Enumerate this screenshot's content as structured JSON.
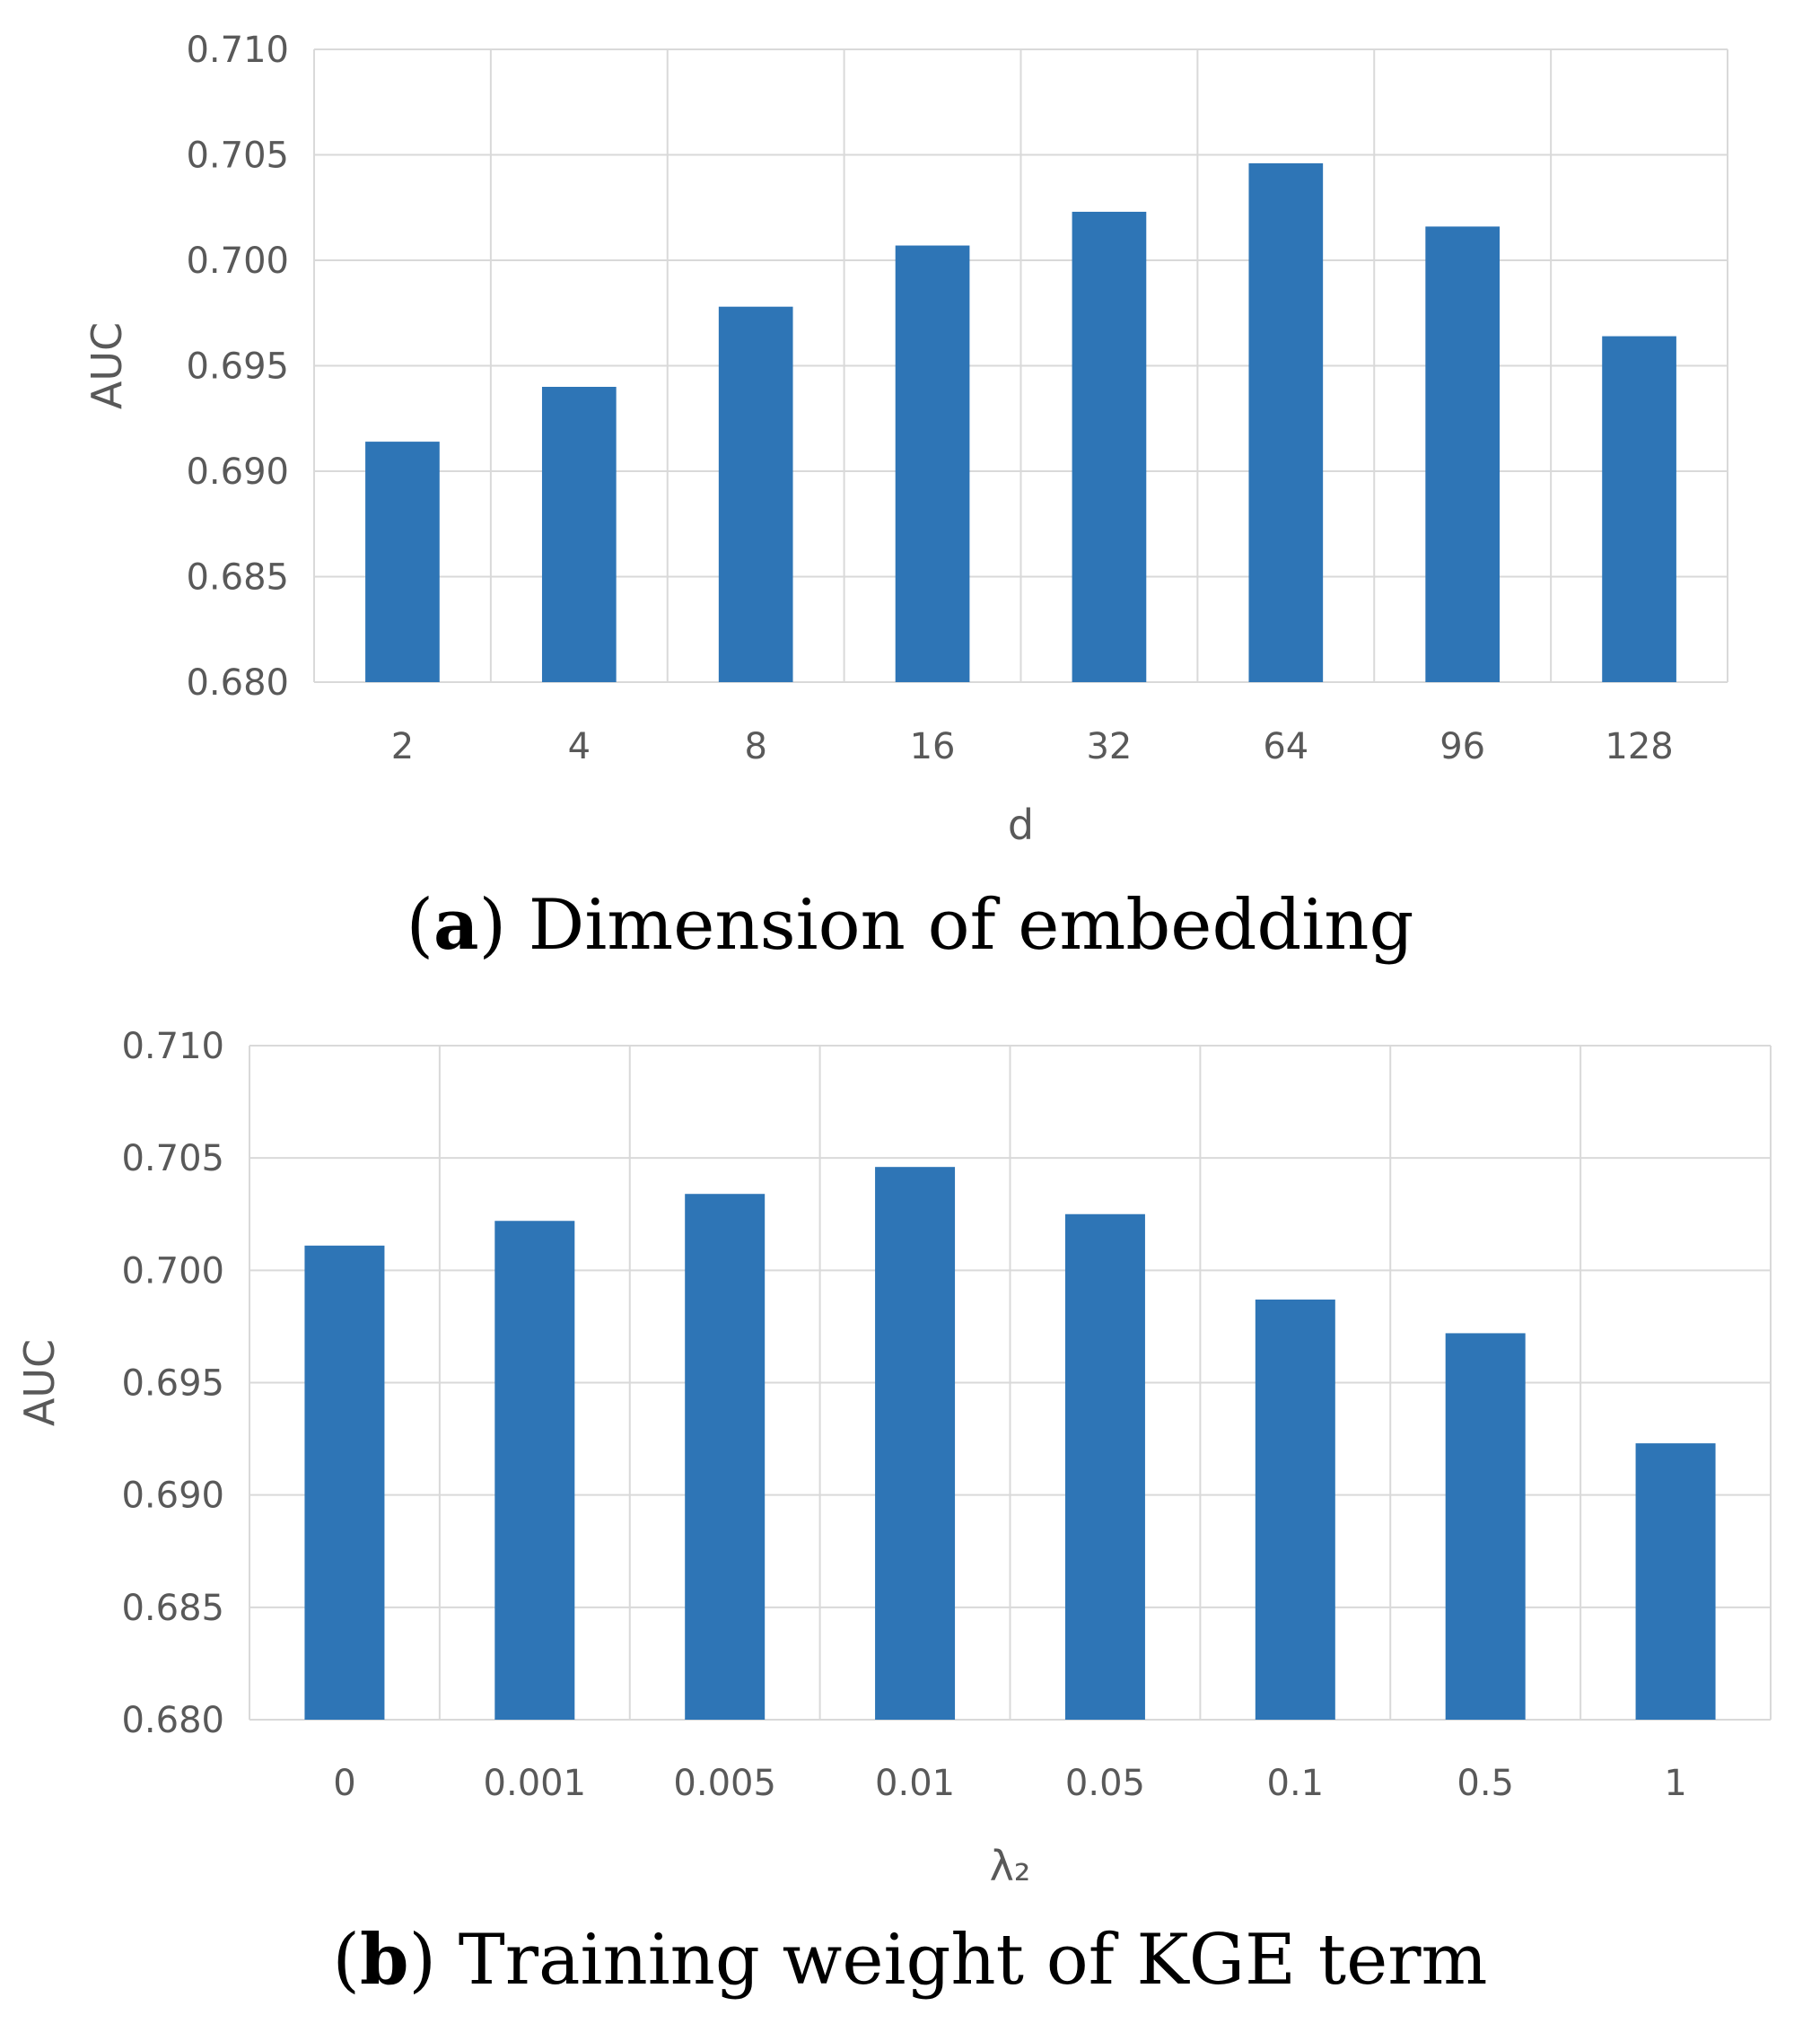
{
  "chart_data": [
    {
      "type": "bar",
      "categories": [
        "2",
        "4",
        "8",
        "16",
        "32",
        "64",
        "96",
        "128"
      ],
      "values": [
        0.6914,
        0.694,
        0.6978,
        0.7007,
        0.7023,
        0.7046,
        0.7016,
        0.6964
      ],
      "xlabel": "d",
      "ylabel": "AUC",
      "ylim": [
        0.68,
        0.71
      ],
      "yticks": [
        "0.680",
        "0.685",
        "0.690",
        "0.695",
        "0.700",
        "0.705",
        "0.710"
      ],
      "grid": true,
      "color": "#2E75B6",
      "caption": {
        "letter": "a",
        "text": "Dimension of embedding"
      }
    },
    {
      "type": "bar",
      "categories": [
        "0",
        "0.001",
        "0.005",
        "0.01",
        "0.05",
        "0.1",
        "0.5",
        "1"
      ],
      "values": [
        0.7011,
        0.7022,
        0.7034,
        0.7046,
        0.7025,
        0.6987,
        0.6972,
        0.6923
      ],
      "xlabel": "λ₂",
      "ylabel": "AUC",
      "ylim": [
        0.68,
        0.71
      ],
      "yticks": [
        "0.680",
        "0.685",
        "0.690",
        "0.695",
        "0.700",
        "0.705",
        "0.710"
      ],
      "grid": true,
      "color": "#2E75B6",
      "caption": {
        "letter": "b",
        "text": "Training weight of KGE term"
      }
    }
  ]
}
